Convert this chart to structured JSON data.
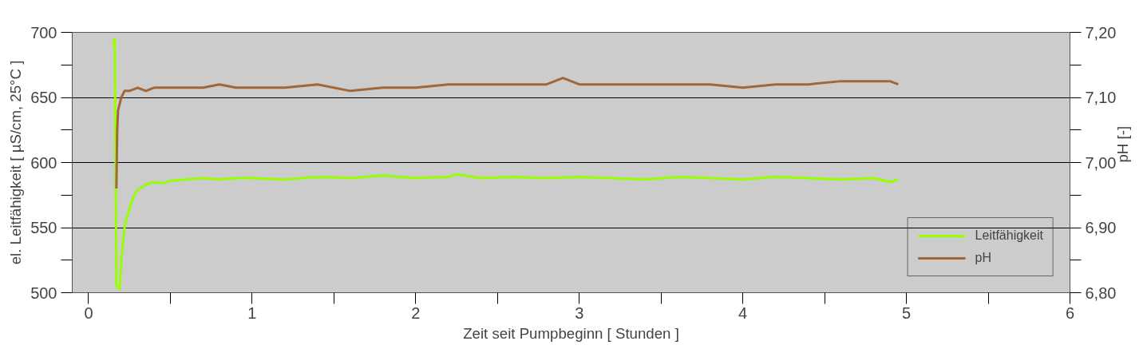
{
  "chart_data": {
    "type": "line",
    "xlabel": "Zeit seit Pumpbeginn [ Stunden ]",
    "ylabel": "el. Leitfähigkeit [ µS/cm, 25°C ]",
    "y2label": "pH [-]",
    "xlim": [
      -0.1,
      6
    ],
    "ylim": [
      500,
      700
    ],
    "y2lim": [
      6.8,
      7.2
    ],
    "xticks": [
      0,
      {
        "value": 0.5,
        "label": null
      },
      1,
      {
        "value": 1.5,
        "label": null
      },
      2,
      {
        "value": 2.5,
        "label": null
      },
      3,
      {
        "value": 3.5,
        "label": null
      },
      4,
      {
        "value": 4.5,
        "label": null
      },
      5,
      {
        "value": 5.5,
        "label": null
      },
      6
    ],
    "yticks": [
      500,
      {
        "value": 525,
        "label": null
      },
      550,
      {
        "value": 575,
        "label": null
      },
      600,
      {
        "value": 625,
        "label": null
      },
      650,
      {
        "value": 675,
        "label": null
      },
      700
    ],
    "y2ticks": [
      {
        "value": 6.8,
        "label": "6,80"
      },
      {
        "value": 6.85,
        "label": null
      },
      {
        "value": 6.9,
        "label": "6,90"
      },
      {
        "value": 6.95,
        "label": null
      },
      {
        "value": 7.0,
        "label": "7,00"
      },
      {
        "value": 7.05,
        "label": null
      },
      {
        "value": 7.1,
        "label": "7,10"
      },
      {
        "value": 7.15,
        "label": null
      },
      {
        "value": 7.2,
        "label": "7,20"
      }
    ],
    "grid": "y",
    "legend": "bottom right",
    "line_style": "solid",
    "series": [
      {
        "name": "Leitfähigkeit",
        "color": "#99ff00",
        "x": [
          0.15,
          0.16,
          0.165,
          0.17,
          0.19,
          0.2,
          0.22,
          0.25,
          0.28,
          0.3,
          0.35,
          0.4,
          0.45,
          0.5,
          0.6,
          0.7,
          0.8,
          0.9,
          1.0,
          1.2,
          1.4,
          1.6,
          1.8,
          2.0,
          2.2,
          2.25,
          2.4,
          2.6,
          2.8,
          3.0,
          3.2,
          3.4,
          3.6,
          3.8,
          4.0,
          4.2,
          4.4,
          4.6,
          4.8,
          4.9,
          4.95
        ],
        "values": [
          690,
          695,
          600,
          505,
          503,
          525,
          550,
          565,
          575,
          579,
          583,
          585,
          584,
          586,
          587,
          588,
          587,
          588,
          588,
          587,
          589,
          588,
          590,
          588,
          589,
          591,
          588,
          589,
          588,
          589,
          588,
          587,
          589,
          588,
          587,
          589,
          588,
          587,
          588,
          585,
          587
        ]
      },
      {
        "name": "pH",
        "color": "#a0673a",
        "axis": "y2",
        "x": [
          0.17,
          0.175,
          0.18,
          0.19,
          0.2,
          0.22,
          0.25,
          0.3,
          0.35,
          0.4,
          0.5,
          0.6,
          0.7,
          0.8,
          0.9,
          1.0,
          1.2,
          1.4,
          1.6,
          1.8,
          2.0,
          2.2,
          2.4,
          2.6,
          2.8,
          2.9,
          3.0,
          3.2,
          3.4,
          3.6,
          3.8,
          4.0,
          4.2,
          4.4,
          4.6,
          4.8,
          4.9,
          4.95
        ],
        "values": [
          6.96,
          7.05,
          7.08,
          7.09,
          7.1,
          7.11,
          7.11,
          7.115,
          7.11,
          7.115,
          7.115,
          7.115,
          7.115,
          7.12,
          7.115,
          7.115,
          7.115,
          7.12,
          7.11,
          7.115,
          7.115,
          7.12,
          7.12,
          7.12,
          7.12,
          7.13,
          7.12,
          7.12,
          7.12,
          7.12,
          7.12,
          7.115,
          7.12,
          7.12,
          7.125,
          7.125,
          7.125,
          7.12
        ]
      }
    ]
  }
}
